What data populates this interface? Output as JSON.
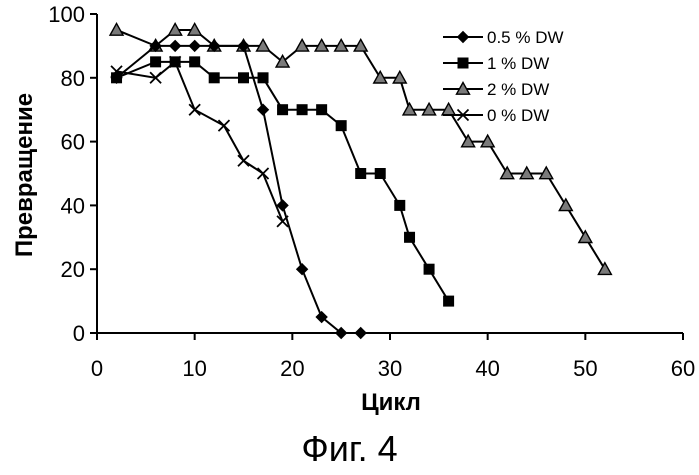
{
  "chart_data": {
    "type": "line",
    "title": "",
    "xlabel": "Цикл",
    "ylabel": "Превращение",
    "xlim": [
      0,
      60
    ],
    "ylim": [
      0,
      100
    ],
    "xticks": [
      0,
      10,
      20,
      30,
      40,
      50,
      60
    ],
    "yticks": [
      0,
      20,
      40,
      60,
      80,
      100
    ],
    "grid": false,
    "legend_position": "top-right",
    "series": [
      {
        "name": "0.5 % DW",
        "marker": "diamond",
        "x": [
          2,
          6,
          8,
          10,
          12,
          15,
          17,
          19,
          21,
          23,
          25,
          27
        ],
        "y": [
          80,
          90,
          90,
          90,
          90,
          90,
          70,
          40,
          20,
          5,
          0,
          0
        ]
      },
      {
        "name": "1 % DW",
        "marker": "square",
        "x": [
          2,
          6,
          8,
          10,
          12,
          15,
          17,
          19,
          21,
          23,
          25,
          27,
          29,
          31,
          32,
          34,
          36
        ],
        "y": [
          80,
          85,
          85,
          85,
          80,
          80,
          80,
          70,
          70,
          70,
          65,
          50,
          50,
          40,
          30,
          20,
          10
        ]
      },
      {
        "name": "2 % DW",
        "marker": "triangle",
        "x": [
          2,
          6,
          8,
          10,
          12,
          15,
          17,
          19,
          21,
          23,
          25,
          27,
          29,
          31,
          32,
          34,
          36,
          38,
          40,
          42,
          44,
          46,
          48,
          50,
          52
        ],
        "y": [
          95,
          90,
          95,
          95,
          90,
          90,
          90,
          85,
          90,
          90,
          90,
          90,
          80,
          80,
          70,
          70,
          70,
          60,
          60,
          50,
          50,
          50,
          40,
          30,
          20
        ]
      },
      {
        "name": "0 % DW",
        "marker": "x",
        "x": [
          2,
          6,
          8,
          10,
          13,
          15,
          17,
          19
        ],
        "y": [
          82,
          80,
          85,
          70,
          65,
          54,
          50,
          35
        ]
      }
    ]
  },
  "caption": "Фиг. 4"
}
